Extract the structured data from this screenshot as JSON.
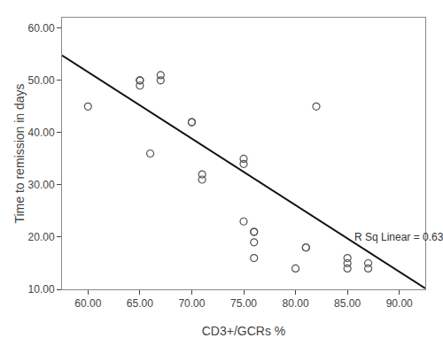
{
  "chart_data": {
    "type": "scatter",
    "xlabel": "CD3+/GCRs %",
    "ylabel": "Time to remission in days",
    "xlim": [
      57.5,
      92.5
    ],
    "ylim": [
      10,
      62
    ],
    "xticks": [
      {
        "value": 60.0,
        "label": "60.00"
      },
      {
        "value": 65.0,
        "label": "65.00"
      },
      {
        "value": 70.0,
        "label": "70.00"
      },
      {
        "value": 75.0,
        "label": "75.00"
      },
      {
        "value": 80.0,
        "label": "80.00"
      },
      {
        "value": 85.0,
        "label": "85.00"
      },
      {
        "value": 90.0,
        "label": "90.00"
      }
    ],
    "yticks": [
      {
        "value": 10.0,
        "label": "10.00"
      },
      {
        "value": 20.0,
        "label": "20.00"
      },
      {
        "value": 30.0,
        "label": "30.00"
      },
      {
        "value": 40.0,
        "label": "40.00"
      },
      {
        "value": 50.0,
        "label": "50.00"
      },
      {
        "value": 60.0,
        "label": "60.00"
      }
    ],
    "grid": false,
    "series": [
      {
        "type": "scatter",
        "color": "#555555",
        "marker": "circle-open",
        "x": [
          60,
          65,
          65,
          65,
          66,
          67,
          67,
          70,
          70,
          71,
          71,
          75,
          75,
          75,
          76,
          76,
          76,
          76,
          80,
          81,
          81,
          82,
          85,
          85,
          85,
          87,
          87
        ],
        "values": [
          45,
          50,
          49,
          50,
          36,
          51,
          50,
          42,
          42,
          32,
          31,
          23,
          34,
          35,
          21,
          21,
          19,
          16,
          14,
          18,
          18,
          45,
          16,
          15,
          14,
          14,
          15
        ]
      },
      {
        "type": "line",
        "color": "#111111",
        "line_style": "solid",
        "x": [
          57.5,
          92.5
        ],
        "values": [
          54.8,
          10.2
        ]
      }
    ],
    "annotations": [
      {
        "text": "R Sq Linear = 0.63",
        "x": 85.5,
        "y": 18.5
      }
    ]
  }
}
